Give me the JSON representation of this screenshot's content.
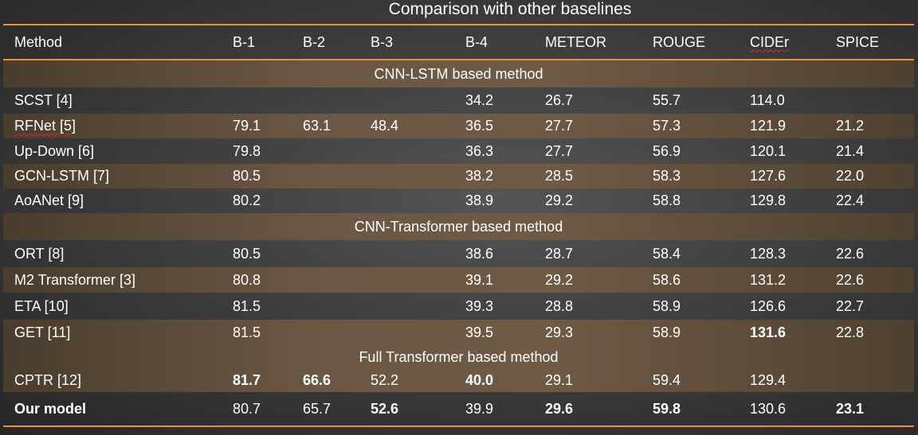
{
  "title": "Comparison with other baselines",
  "columns": [
    "Method",
    "B-1",
    "B-2",
    "B-3",
    "B-4",
    "METEOR",
    "ROUGE",
    "CIDEr",
    "SPICE"
  ],
  "groups": [
    {
      "label": "CNN-LSTM based method",
      "rows": [
        {
          "method": "SCST [4]",
          "cells": [
            "",
            "",
            "",
            "34.2",
            "26.7",
            "55.7",
            "114.0",
            ""
          ],
          "bold": []
        },
        {
          "method": "RFNet [5]",
          "cells": [
            "79.1",
            "63.1",
            "48.4",
            "36.5",
            "27.7",
            "57.3",
            "121.9",
            "21.2"
          ],
          "bold": []
        },
        {
          "method": "Up-Down [6]",
          "cells": [
            "79.8",
            "",
            "",
            "36.3",
            "27.7",
            "56.9",
            "120.1",
            "21.4"
          ],
          "bold": []
        },
        {
          "method": "GCN-LSTM [7]",
          "cells": [
            "80.5",
            "",
            "",
            "38.2",
            "28.5",
            "58.3",
            "127.6",
            "22.0"
          ],
          "bold": []
        },
        {
          "method": "AoANet [9]",
          "cells": [
            "80.2",
            "",
            "",
            "38.9",
            "29.2",
            "58.8",
            "129.8",
            "22.4"
          ],
          "bold": []
        }
      ]
    },
    {
      "label": "CNN-Transformer based method",
      "rows": [
        {
          "method": "ORT [8]",
          "cells": [
            "80.5",
            "",
            "",
            "38.6",
            "28.7",
            "58.4",
            "128.3",
            "22.6"
          ],
          "bold": []
        },
        {
          "method": "M2 Transformer [3]",
          "cells": [
            "80.8",
            "",
            "",
            "39.1",
            "29.2",
            "58.6",
            "131.2",
            "22.6"
          ],
          "bold": []
        },
        {
          "method": "ETA [10]",
          "cells": [
            "81.5",
            "",
            "",
            "39.3",
            "28.8",
            "58.9",
            "126.6",
            "22.7"
          ],
          "bold": []
        },
        {
          "method": "GET [11]",
          "cells": [
            "81.5",
            "",
            "",
            "39.5",
            "29.3",
            "58.9",
            "131.6",
            "22.8"
          ],
          "bold": [
            6
          ]
        }
      ]
    },
    {
      "label": "Full Transformer based method",
      "rows": [
        {
          "method": "CPTR [12]",
          "cells": [
            "81.7",
            "66.6",
            "52.2",
            "40.0",
            "29.1",
            "59.4",
            "129.4",
            ""
          ],
          "bold": [
            0,
            1,
            3
          ]
        },
        {
          "method": "Our model",
          "cells": [
            "80.7",
            "65.7",
            "52.6",
            "39.9",
            "29.6",
            "59.8",
            "130.6",
            "23.1"
          ],
          "bold": [
            2,
            4,
            5,
            7
          ],
          "method_bold": true
        }
      ]
    }
  ],
  "colors": {
    "rule": "#e8903a",
    "stripe": "#6b5844",
    "background": "#3e3e3e",
    "text": "#ffffff"
  }
}
